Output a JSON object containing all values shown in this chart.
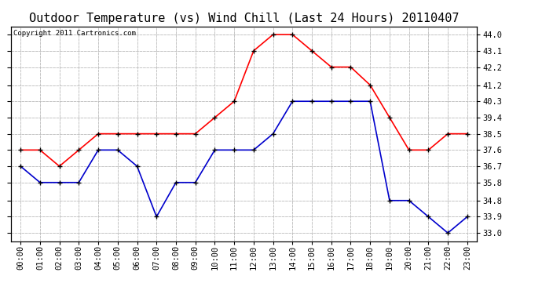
{
  "title": "Outdoor Temperature (vs) Wind Chill (Last 24 Hours) 20110407",
  "copyright": "Copyright 2011 Cartronics.com",
  "hours": [
    "00:00",
    "01:00",
    "02:00",
    "03:00",
    "04:00",
    "05:00",
    "06:00",
    "07:00",
    "08:00",
    "09:00",
    "10:00",
    "11:00",
    "12:00",
    "13:00",
    "14:00",
    "15:00",
    "16:00",
    "17:00",
    "18:00",
    "19:00",
    "20:00",
    "21:00",
    "22:00",
    "23:00"
  ],
  "temp_red": [
    37.6,
    37.6,
    36.7,
    37.6,
    38.5,
    38.5,
    38.5,
    38.5,
    38.5,
    38.5,
    39.4,
    40.3,
    43.1,
    44.0,
    44.0,
    43.1,
    42.2,
    42.2,
    41.2,
    39.4,
    37.6,
    37.6,
    38.5,
    38.5
  ],
  "wind_chill_blue": [
    36.7,
    35.8,
    35.8,
    35.8,
    37.6,
    37.6,
    36.7,
    33.9,
    35.8,
    35.8,
    37.6,
    37.6,
    37.6,
    38.5,
    40.3,
    40.3,
    40.3,
    40.3,
    40.3,
    34.8,
    34.8,
    33.9,
    33.0,
    33.9
  ],
  "red_color": "#ff0000",
  "blue_color": "#0000cc",
  "marker_color": "#000000",
  "background_color": "#ffffff",
  "grid_color": "#bbbbbb",
  "title_fontsize": 11,
  "copyright_fontsize": 6.5,
  "tick_fontsize": 7.5,
  "ytick_fontsize": 7.5,
  "yticks": [
    33.0,
    33.9,
    34.8,
    35.8,
    36.7,
    37.6,
    38.5,
    39.4,
    40.3,
    41.2,
    42.2,
    43.1,
    44.0
  ],
  "ylim": [
    32.55,
    44.45
  ],
  "linewidth": 1.2,
  "markersize": 5
}
